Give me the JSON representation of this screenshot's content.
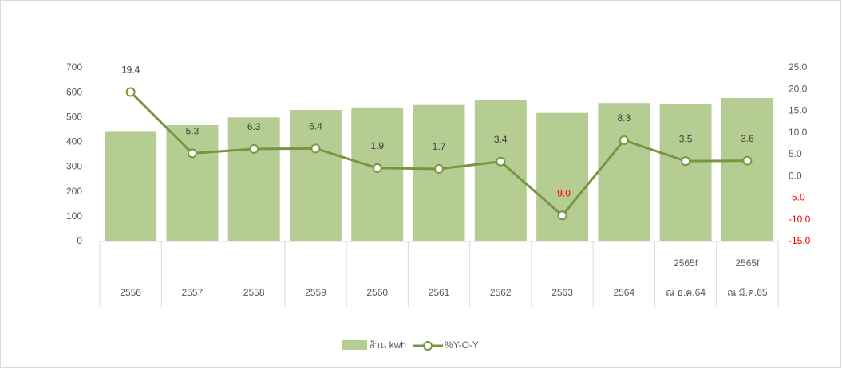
{
  "chart_data": {
    "type": "bar-line",
    "categories": [
      [
        "2556"
      ],
      [
        "2557"
      ],
      [
        "2558"
      ],
      [
        "2559"
      ],
      [
        "2560"
      ],
      [
        "2561"
      ],
      [
        "2562"
      ],
      [
        "2563"
      ],
      [
        "2564"
      ],
      [
        "2565f",
        "ณ ธ.ค.64"
      ],
      [
        "2565f",
        "ณ มี.ค.65"
      ]
    ],
    "series": [
      {
        "name": "ล้าน kwh",
        "type": "bar",
        "color": "#b5cd93",
        "values": [
          445,
          469,
          500,
          530,
          540,
          550,
          570,
          518,
          558,
          553,
          578
        ]
      },
      {
        "name": "%Y-O-Y",
        "type": "line",
        "axis": "y2",
        "color": "#77963f",
        "values": [
          19.4,
          5.3,
          6.3,
          6.4,
          1.9,
          1.7,
          3.4,
          -9.0,
          8.3,
          3.5,
          3.6
        ],
        "value_labels": [
          "19.4",
          "5.3",
          "6.3",
          "6.4",
          "1.9",
          "1.7",
          "3.4",
          "-9.0",
          "8.3",
          "3.5",
          "3.6"
        ]
      }
    ],
    "ylim": [
      0,
      700
    ],
    "yticks": [
      0,
      100,
      200,
      300,
      400,
      500,
      600,
      700
    ],
    "y2lim": [
      -15,
      25
    ],
    "y2ticks": [
      {
        "value": -15,
        "label": "-15.0"
      },
      {
        "value": -10,
        "label": "-10.0"
      },
      {
        "value": -5,
        "label": "-5.0"
      },
      {
        "value": 0,
        "label": "0.0"
      },
      {
        "value": 5,
        "label": "5.0"
      },
      {
        "value": 10,
        "label": "10.0"
      },
      {
        "value": 15,
        "label": "15.0"
      },
      {
        "value": 20,
        "label": "20.0"
      },
      {
        "value": 25,
        "label": "25.0"
      }
    ],
    "negative_color": "#ff0000",
    "legend": "bottom"
  }
}
